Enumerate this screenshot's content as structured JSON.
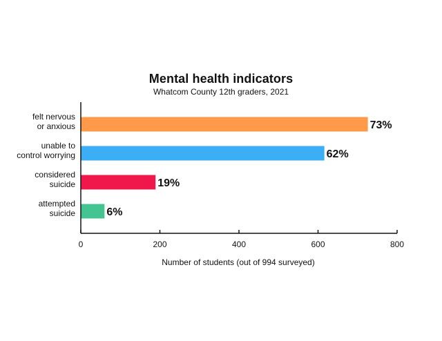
{
  "chart_data": {
    "type": "bar",
    "orientation": "horizontal",
    "title": "Mental health indicators",
    "subtitle": "Whatcom County 12th graders, 2021",
    "xlabel": "Number of students (out of 994 surveyed)",
    "ylabel": "",
    "xlim": [
      0,
      800
    ],
    "xticks": [
      0,
      200,
      400,
      600,
      800
    ],
    "grid": false,
    "categories": [
      [
        "felt nervous",
        "or anxious"
      ],
      [
        "unable to",
        "control worrying"
      ],
      [
        "considered",
        "suicide"
      ],
      [
        "attempted",
        "suicide"
      ]
    ],
    "values": [
      726,
      616,
      189,
      60
    ],
    "data_labels": [
      "73%",
      "62%",
      "19%",
      "6%"
    ],
    "colors": [
      "#FF9A4A",
      "#3BAEF5",
      "#F0184A",
      "#45C493"
    ]
  }
}
